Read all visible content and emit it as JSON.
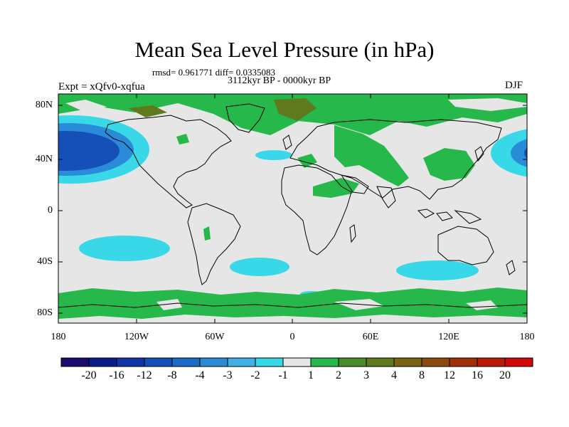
{
  "title": "Mean Sea Level Pressure (in hPa)",
  "stats": "rmsd= 0.961771 diff= 0.0335083",
  "period": "3112kyr BP - 0000kyr BP",
  "experiment": "Expt = xQfv0-xqfua",
  "season": "DJF",
  "axes": {
    "y_ticks": [
      "80N",
      "40N",
      "0",
      "40S",
      "80S"
    ],
    "x_ticks": [
      "180",
      "120W",
      "60W",
      "0",
      "60E",
      "120E",
      "180"
    ]
  },
  "colorbar": {
    "colors": [
      "#1a0a6e",
      "#0a1c8c",
      "#0f35a8",
      "#1450b8",
      "#1a6cc8",
      "#2a8cd8",
      "#40b0e6",
      "#38d8e8",
      "#e6e6e6",
      "#26b84a",
      "#4a8c28",
      "#5e7a1c",
      "#7a6414",
      "#8c4a10",
      "#a03008",
      "#b81a06",
      "#d00808"
    ],
    "labels": [
      "-20",
      "-16",
      "-12",
      "-8",
      "-4",
      "-3",
      "-2",
      "-1",
      "1",
      "2",
      "3",
      "4",
      "8",
      "12",
      "16",
      "20"
    ]
  }
}
